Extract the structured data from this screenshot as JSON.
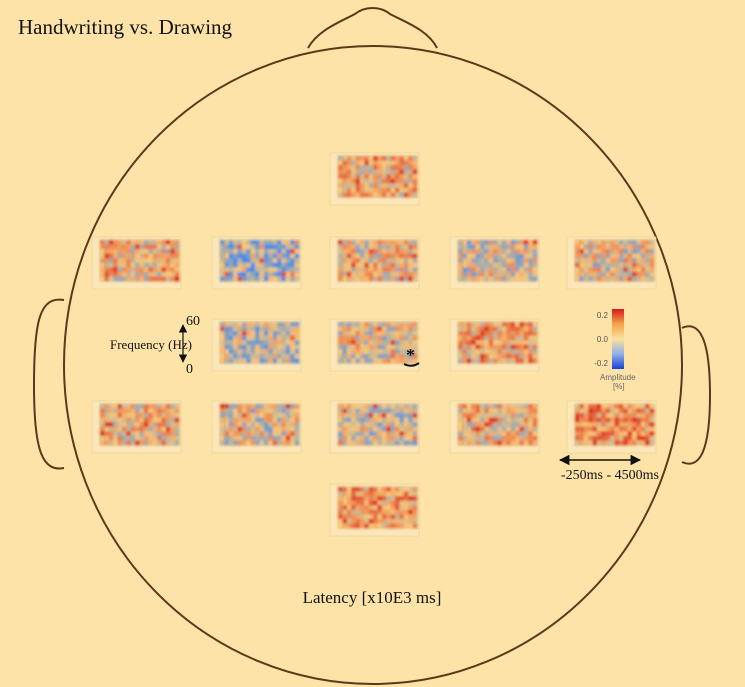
{
  "title": "Handwriting vs. Drawing",
  "frequency_axis": {
    "label": "Frequency (Hz)",
    "max": "60",
    "min": "0"
  },
  "colorbar": {
    "ticks": [
      "0.2",
      "0.0",
      "-0.2"
    ],
    "label": "Amplitude",
    "unit": "[%]"
  },
  "significance_marker": "*",
  "time_range": "-250ms - 4500ms",
  "x_axis_label": "Latency [x10E3 ms]"
}
